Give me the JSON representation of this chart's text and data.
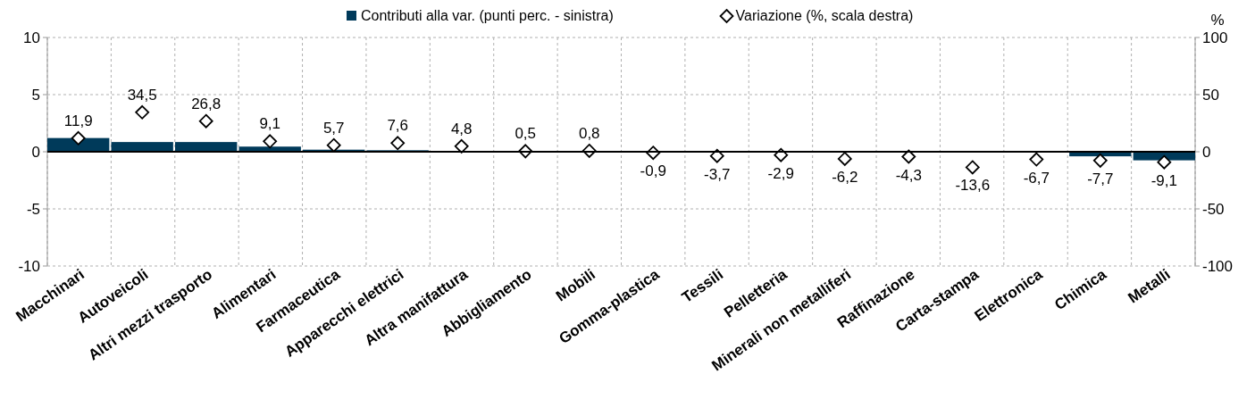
{
  "chart_data": {
    "type": "bar",
    "categories": [
      "Macchinari",
      "Autoveicoli",
      "Altri mezzi trasporto",
      "Alimentari",
      "Farmaceutica",
      "Apparecchi elettrici",
      "Altra manifattura",
      "Abbigliamento",
      "Mobili",
      "Gomma-plastica",
      "Tessili",
      "Pelletteria",
      "Minerali non metalliferi",
      "Raffinazione",
      "Carta-stampa",
      "Elettronica",
      "Chimica",
      "Metalli"
    ],
    "series": [
      {
        "name": "Contributi alla var. (punti perc. - sinistra)",
        "color": "#003a5a",
        "values": [
          1.2,
          0.85,
          0.85,
          0.45,
          0.18,
          0.13,
          0.02,
          0,
          0,
          0,
          0,
          0,
          0,
          0,
          -0.05,
          -0.05,
          -0.4,
          -0.75
        ]
      },
      {
        "name": "Variazione (%, scala destra)",
        "type": "scatter",
        "axis": "y2",
        "color": "#000000",
        "values": [
          11.9,
          34.5,
          26.8,
          9.1,
          5.7,
          7.6,
          4.8,
          0.5,
          0.8,
          -0.9,
          -3.7,
          -2.9,
          -6.2,
          -4.3,
          -13.6,
          -6.7,
          -7.7,
          -9.1
        ],
        "value_labels": [
          "11,9",
          "34,5",
          "26,8",
          "9,1",
          "5,7",
          "7,6",
          "4,8",
          "0,5",
          "0,8",
          "-0,9",
          "-3,7",
          "-2,9",
          "-6,2",
          "-4,3",
          "-13,6",
          "-6,7",
          "-7,7",
          "-9,1"
        ]
      }
    ],
    "ylim": [
      -10,
      10
    ],
    "yticks": [
      -10,
      -5,
      0,
      5,
      10
    ],
    "y2lim": [
      -100,
      100
    ],
    "y2ticks": [
      -100,
      -50,
      0,
      50,
      100
    ],
    "y2label": "%",
    "grid": true,
    "legend": "top",
    "marker": "diamond"
  }
}
